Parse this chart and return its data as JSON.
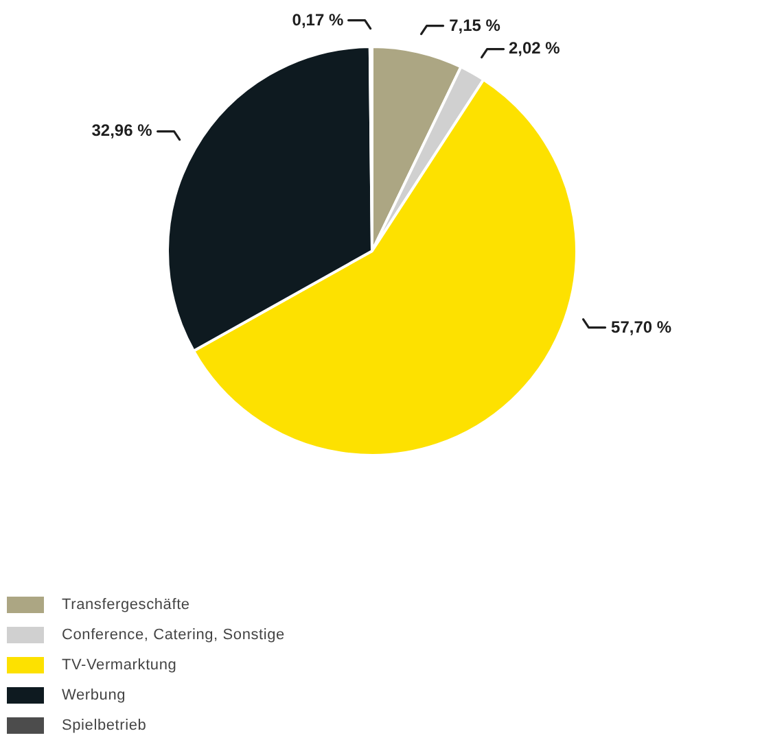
{
  "chart_data": {
    "type": "pie",
    "categories": [
      "Transfergeschäfte",
      "Conference, Catering, Sonstige",
      "TV-Vermarktung",
      "Werbung",
      "Spielbetrieb"
    ],
    "values": [
      7.15,
      2.02,
      57.7,
      32.96,
      0.17
    ],
    "colors": [
      "#aca683",
      "#d0d0d0",
      "#fde100",
      "#0e1a20",
      "#4c4c4c"
    ],
    "value_labels": [
      "7,15 %",
      "2,02 %",
      "57,70 %",
      "32,96 %",
      "0,17 %"
    ],
    "legend": "bottom left"
  }
}
